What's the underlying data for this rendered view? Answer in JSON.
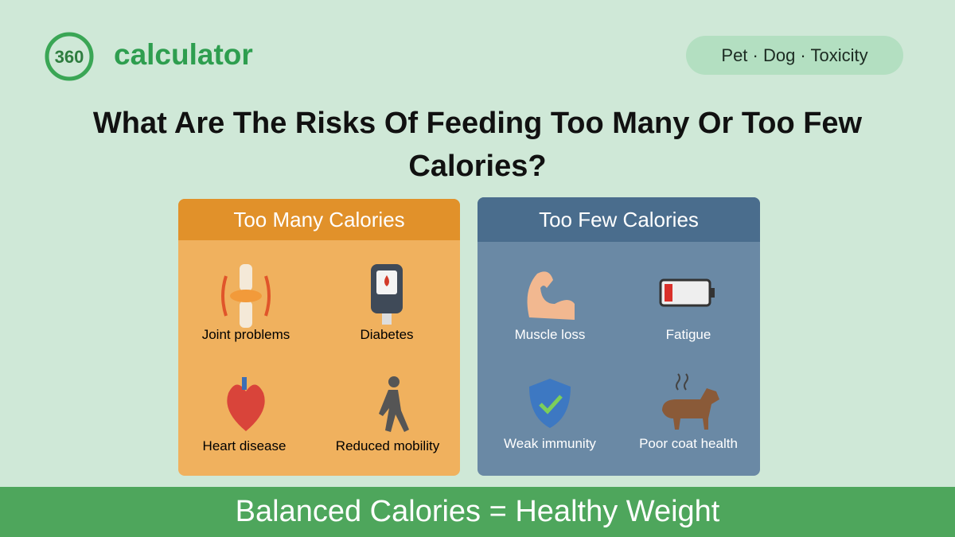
{
  "header": {
    "logo_number": "360",
    "logo_text": "calculator",
    "tag": "Pet · Dog · Toxicity"
  },
  "title": "What Are The Risks Of Feeding Too Many Or Too Few Calories?",
  "panels": [
    {
      "title": "Too Many Calories",
      "items": [
        "Joint problems",
        "Diabetes",
        "Heart disease",
        "Reduced mobility"
      ]
    },
    {
      "title": "Too Few Calories",
      "items": [
        "Muscle loss",
        "Fatigue",
        "Weak immunity",
        "Poor coat health"
      ]
    }
  ],
  "footer": "Balanced Calories = Healthy Weight"
}
